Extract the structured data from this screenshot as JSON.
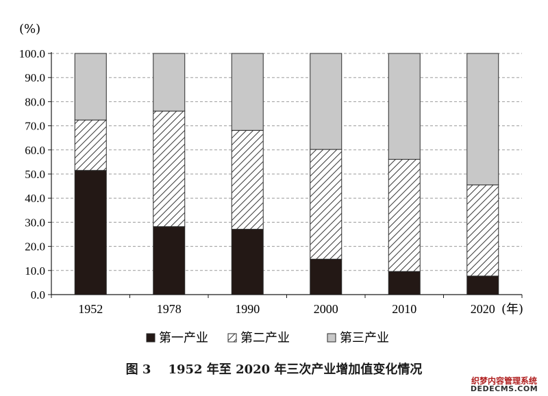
{
  "chart_data": {
    "type": "bar",
    "stacked": true,
    "y_unit": "(%)",
    "x_unit": "(年)",
    "categories": [
      "1952",
      "1978",
      "1990",
      "2000",
      "2010",
      "2020"
    ],
    "series": [
      {
        "name": "第一产业",
        "pattern": "solid",
        "color": "#231815",
        "values": [
          51.5,
          28.2,
          27.1,
          14.7,
          9.6,
          7.7
        ]
      },
      {
        "name": "第二产业",
        "pattern": "hatch",
        "color": "#ffffff",
        "values": [
          20.9,
          47.9,
          41.0,
          45.5,
          46.5,
          37.8
        ]
      },
      {
        "name": "第三产业",
        "pattern": "solid",
        "color": "#c8c8c8",
        "values": [
          27.6,
          23.9,
          31.9,
          39.8,
          43.9,
          54.5
        ]
      }
    ],
    "ylim": [
      0,
      100
    ],
    "yticks": [
      "0.0",
      "10.0",
      "20.0",
      "30.0",
      "40.0",
      "50.0",
      "60.0",
      "70.0",
      "80.0",
      "90.0",
      "100.0"
    ],
    "grid": "horizontal-dashed",
    "legend_position": "bottom"
  },
  "caption": {
    "label": "图 3",
    "text": "1952 年至 2020 年三次产业增加值变化情况"
  },
  "watermark": {
    "line1": "织梦内容管理系统",
    "line2": "DEDECMS.COM"
  }
}
